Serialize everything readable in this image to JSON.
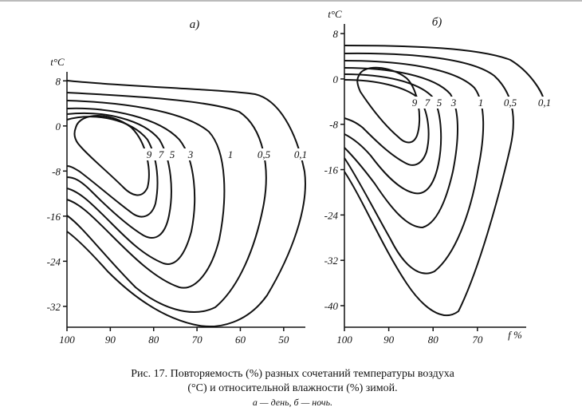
{
  "chart_data": [
    {
      "type": "contour",
      "title": "а)",
      "y_label": "t°C",
      "values": [
        9,
        7,
        5,
        3,
        1,
        0.5,
        0.1
      ],
      "value_labels": [
        "9",
        "7",
        "5",
        "3",
        "1",
        "0,5",
        "0,1"
      ],
      "xlim": [
        100,
        45
      ],
      "xticks": [
        100,
        90,
        80,
        70,
        60,
        50
      ],
      "ylim": [
        -35.7,
        9.6
      ],
      "yticks": [
        8,
        0,
        -8,
        -16,
        -24,
        -32
      ]
    },
    {
      "type": "contour",
      "title": "б)",
      "y_label": "t°C",
      "x_label": "f %",
      "values": [
        9,
        7,
        5,
        3,
        1,
        0.5,
        0.1
      ],
      "value_labels": [
        "9",
        "7",
        "5",
        "3",
        "1",
        "0,5",
        "0,1"
      ],
      "xlim": [
        100,
        59
      ],
      "xticks": [
        100,
        90,
        80,
        70
      ],
      "ylim": [
        -43.8,
        9.7
      ],
      "yticks": [
        8,
        0,
        -8,
        -16,
        -24,
        -32,
        -40
      ]
    }
  ],
  "caption": {
    "lines": [
      "Рис. 17. Повторяемость (%) разных сочетаний температуры воздуха",
      "(°C) и относительной влажности (%) зимой."
    ],
    "legend": "а — день, б — ночь."
  }
}
